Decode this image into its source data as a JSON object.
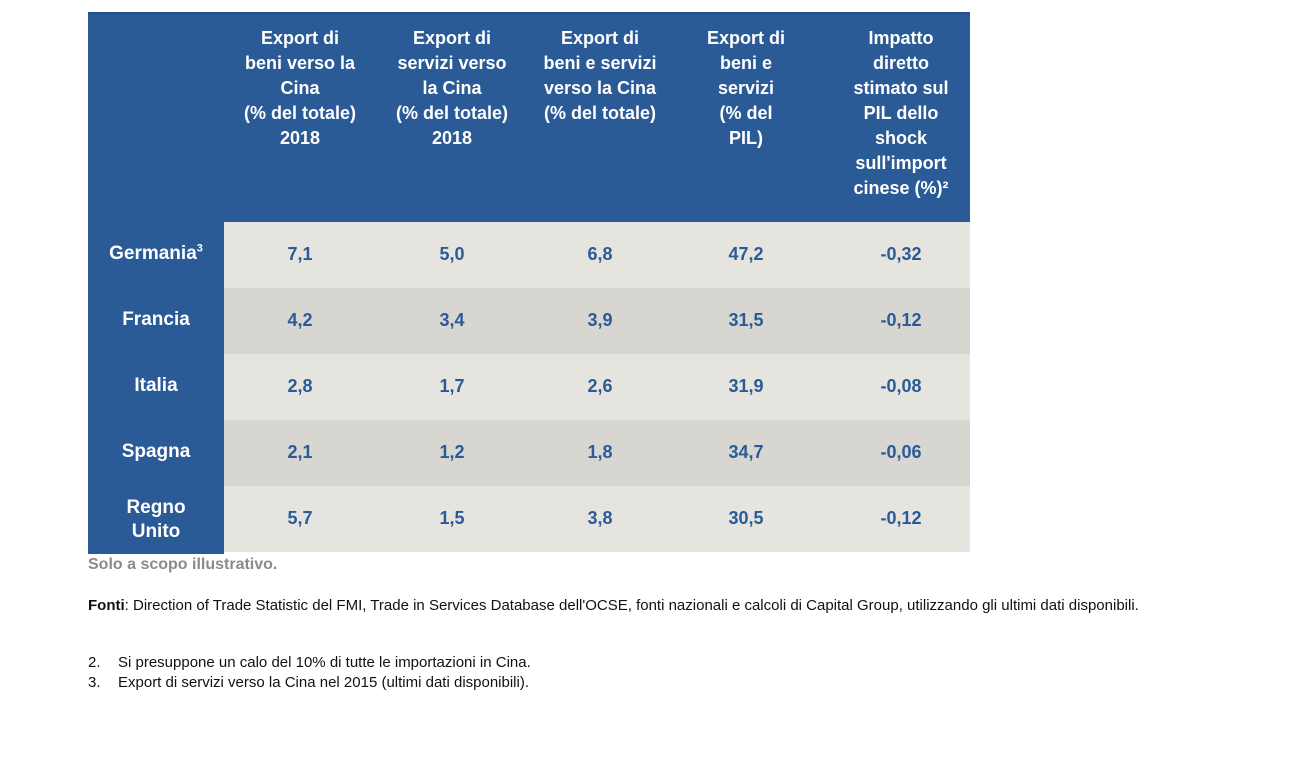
{
  "table": {
    "headers": [
      "Export di\nbeni verso la\nCina\n(% del totale)\n2018",
      "Export di\nservizi verso\nla Cina\n(% del totale)\n2018",
      "Export di\nbeni e servizi\nverso la Cina\n(% del totale)",
      "Export di\nbeni e\nservizi\n(% del\nPIL)",
      "Impatto\ndiretto\nstimato sul\nPIL dello\nshock\nsull'import\ncinese (%)²"
    ],
    "rows": [
      {
        "label": "Germania",
        "sup": "3",
        "values": [
          "7,1",
          "5,0",
          "6,8",
          "47,2",
          "-0,32"
        ]
      },
      {
        "label": "Francia",
        "sup": "",
        "values": [
          "4,2",
          "3,4",
          "3,9",
          "31,5",
          "-0,12"
        ]
      },
      {
        "label": "Italia",
        "sup": "",
        "values": [
          "2,8",
          "1,7",
          "2,6",
          "31,9",
          "-0,08"
        ]
      },
      {
        "label": "Spagna",
        "sup": "",
        "values": [
          "2,1",
          "1,2",
          "1,8",
          "34,7",
          "-0,06"
        ]
      },
      {
        "label": "Regno\nUnito",
        "sup": "",
        "values": [
          "5,7",
          "1,5",
          "3,8",
          "30,5",
          "-0,12"
        ]
      }
    ]
  },
  "notes": {
    "illustrative": "Solo a scopo illustrativo.",
    "sources_label": "Fonti",
    "sources_text": ": Direction of Trade Statistic del FMI, Trade in Services Database dell'OCSE, fonti nazionali e calcoli di Capital Group, utilizzando gli ultimi dati disponibili.",
    "footnotes": [
      {
        "num": "2.",
        "text": "Si presuppone un calo del 10% di tutte le importazioni in Cina."
      },
      {
        "num": "3.",
        "text": "Export di servizi verso la Cina nel 2015 (ultimi dati disponibili)."
      }
    ]
  },
  "colors": {
    "header_blue": "#2a5b97",
    "row_light": "#e6e4df",
    "row_dark": "#d8d6d1"
  }
}
